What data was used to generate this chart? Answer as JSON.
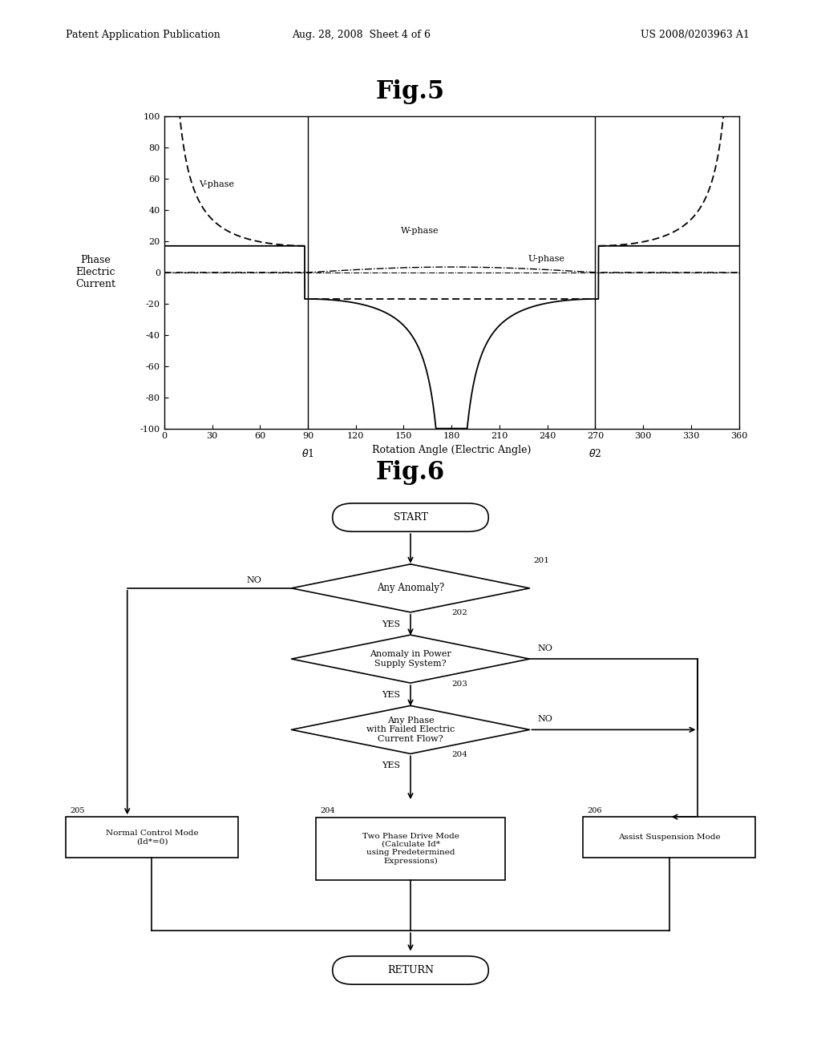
{
  "fig_title": "Fig.5",
  "fig6_title": "Fig.6",
  "header_left": "Patent Application Publication",
  "header_center": "Aug. 28, 2008  Sheet 4 of 6",
  "header_right": "US 2008/0203963 A1",
  "graph": {
    "xlabel": "Rotation Angle (Electric Angle)",
    "ylabel": "Phase\nElectric\nCurrent",
    "xticks": [
      0,
      30,
      60,
      90,
      120,
      150,
      180,
      210,
      240,
      270,
      300,
      330,
      360
    ],
    "yticks": [
      -100,
      -80,
      -60,
      -40,
      -20,
      0,
      20,
      40,
      60,
      80,
      100
    ],
    "ylim": [
      -100,
      100
    ],
    "xlim": [
      0,
      360
    ],
    "theta1": 90,
    "theta2": 270,
    "u_label": "U-phase",
    "v_label": "V-phase",
    "w_label": "W-phase"
  },
  "flowchart": {
    "start_text": "START",
    "return_text": "RETURN",
    "box201": "Any Anomaly?",
    "box202": "Anomaly in Power\nSupply System?",
    "box203": "Any Phase\nwith Failed Electric\nCurrent Flow?",
    "box205": "Normal Control Mode\n(Id*=0)",
    "box204": "Two Phase Drive Mode\n(Calculate Id*\nusing Predetermined\nExpressions)",
    "box206": "Assist Suspension Mode",
    "label201": "201",
    "label202": "202",
    "label203": "203",
    "label204": "204",
    "label205": "205",
    "label206": "206",
    "yes": "YES",
    "no": "NO"
  }
}
